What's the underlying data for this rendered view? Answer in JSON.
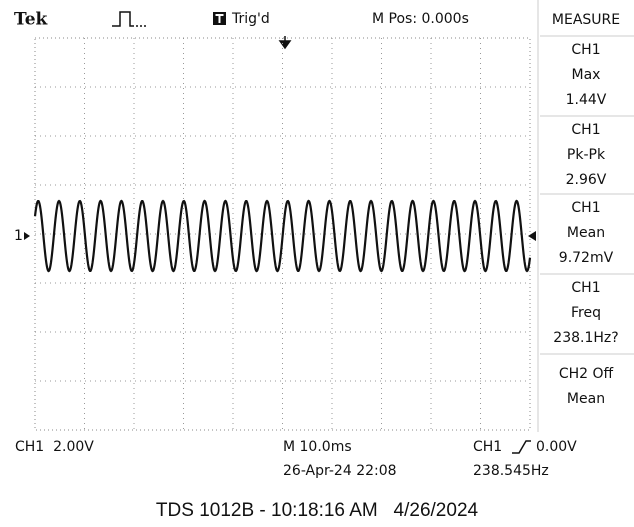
{
  "header": {
    "brand": "Tek",
    "status": "Trig'd",
    "position": "M Pos: 0.000s"
  },
  "measure": {
    "title": "MEASURE",
    "items": [
      {
        "source": "CH1",
        "label": "Max",
        "value": "1.44V"
      },
      {
        "source": "CH1",
        "label": "Pk-Pk",
        "value": "2.96V"
      },
      {
        "source": "CH1",
        "label": "Mean",
        "value": "9.72mV"
      },
      {
        "source": "CH1",
        "label": "Freq",
        "value": "238.1Hz?"
      },
      {
        "source": "CH2 Off",
        "label": "Mean"
      }
    ]
  },
  "channel_marker": "1",
  "status_bar": {
    "ch1_scale": "CH1  2.00V",
    "timebase": "M 10.0ms",
    "trigger_source": "CH1",
    "trigger_level": "0.00V",
    "datetime": "26-Apr-24 22:08",
    "frequency": "238.545Hz"
  },
  "footer": "TDS 1012B - 10:18:16 AM   4/26/2024"
}
